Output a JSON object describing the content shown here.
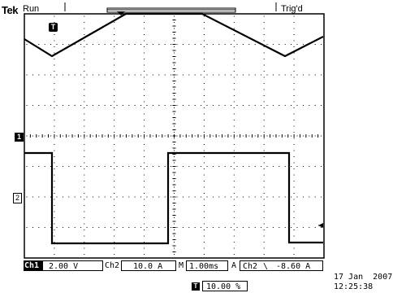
{
  "brand": "Tek",
  "acq_state": "Run",
  "trigger_status": "Trig'd",
  "trigger_marker_label": "T",
  "ch1_marker_label": "1",
  "ch2_marker_label": "2",
  "channels": {
    "ch1": {
      "label": "Ch1",
      "scale": "2.00 V"
    },
    "ch2": {
      "label": "Ch2",
      "scale": "10.0 A"
    }
  },
  "timebase": {
    "prefix": "M",
    "value": "1.00ms"
  },
  "trigger": {
    "coupling": "A",
    "source": "Ch2",
    "slope_symbol": "\\",
    "level": "-8.60 A"
  },
  "trigger_position": {
    "icon_label": "T",
    "value": "10.00 %"
  },
  "datetime": {
    "date": "17 Jan  2007",
    "time": "12:25:38"
  },
  "colors": {
    "background": "#ffffff",
    "trace": "#000000",
    "grid": "#000000"
  }
}
